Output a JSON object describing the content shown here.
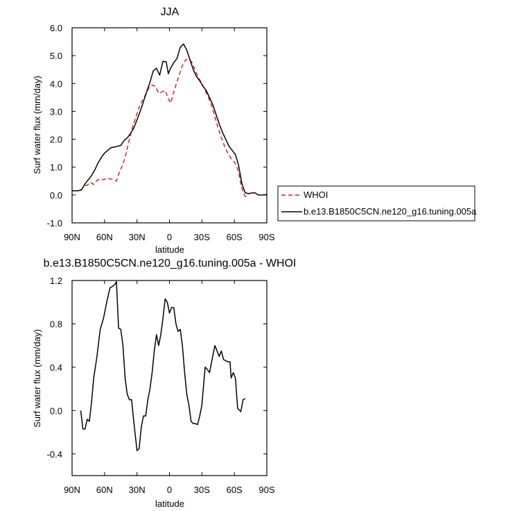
{
  "chart_data": [
    {
      "type": "line",
      "title": "JJA",
      "xlabel": "latitude",
      "ylabel": "Surf water flux (mm/day)",
      "xlim": [
        90,
        -90
      ],
      "ylim": [
        -1.0,
        6.0
      ],
      "x_ticks": [
        90,
        60,
        30,
        0,
        -30,
        -60,
        -90
      ],
      "x_tick_labels": [
        "90N",
        "60N",
        "30N",
        "0",
        "30S",
        "60S",
        "90S"
      ],
      "y_ticks": [
        -1.0,
        0.0,
        1.0,
        2.0,
        3.0,
        4.0,
        5.0,
        6.0
      ],
      "y_tick_labels": [
        "-1.0",
        "0.0",
        "1.0",
        "2.0",
        "3.0",
        "4.0",
        "5.0",
        "6.0"
      ],
      "grid": false,
      "legend_position": "outside-right",
      "series": [
        {
          "name": "WHOI",
          "color": "#e41a1c",
          "dash": "dashed",
          "points": [
            [
              82,
              0.15
            ],
            [
              79,
              0.33
            ],
            [
              76,
              0.35
            ],
            [
              73,
              0.45
            ],
            [
              70,
              0.38
            ],
            [
              67,
              0.52
            ],
            [
              64,
              0.58
            ],
            [
              61,
              0.55
            ],
            [
              58,
              0.6
            ],
            [
              55,
              0.58
            ],
            [
              52,
              0.55
            ],
            [
              49,
              0.5
            ],
            [
              46,
              0.85
            ],
            [
              43,
              1.1
            ],
            [
              40,
              1.5
            ],
            [
              37,
              2.0
            ],
            [
              34,
              2.45
            ],
            [
              31,
              2.8
            ],
            [
              28,
              3.15
            ],
            [
              25,
              3.4
            ],
            [
              22,
              3.6
            ],
            [
              19,
              3.85
            ],
            [
              16,
              3.95
            ],
            [
              13,
              3.9
            ],
            [
              10,
              3.65
            ],
            [
              7,
              3.7
            ],
            [
              4,
              3.75
            ],
            [
              1,
              3.45
            ],
            [
              -1,
              3.3
            ],
            [
              -3,
              3.55
            ],
            [
              -6,
              3.95
            ],
            [
              -9,
              4.3
            ],
            [
              -12,
              4.65
            ],
            [
              -15,
              4.85
            ],
            [
              -18,
              4.88
            ],
            [
              -21,
              4.75
            ],
            [
              -24,
              4.45
            ],
            [
              -27,
              4.2
            ],
            [
              -30,
              4.0
            ],
            [
              -33,
              3.75
            ],
            [
              -36,
              3.5
            ],
            [
              -39,
              3.2
            ],
            [
              -42,
              2.8
            ],
            [
              -45,
              2.4
            ],
            [
              -48,
              2.05
            ],
            [
              -51,
              1.75
            ],
            [
              -54,
              1.5
            ],
            [
              -57,
              1.3
            ],
            [
              -60,
              1.18
            ],
            [
              -62,
              1.05
            ],
            [
              -64,
              0.8
            ],
            [
              -66,
              0.4
            ],
            [
              -68,
              0.1
            ],
            [
              -70,
              -0.05
            ],
            [
              -72,
              -0.08
            ]
          ]
        },
        {
          "name": "b.e13.B1850C5CN.ne120_g16.tuning.005a",
          "color": "#000000",
          "dash": "solid",
          "points": [
            [
              90,
              0.15
            ],
            [
              87,
              0.15
            ],
            [
              84,
              0.15
            ],
            [
              81,
              0.2
            ],
            [
              78,
              0.4
            ],
            [
              75,
              0.55
            ],
            [
              72,
              0.7
            ],
            [
              69,
              0.9
            ],
            [
              66,
              1.15
            ],
            [
              63,
              1.35
            ],
            [
              60,
              1.5
            ],
            [
              57,
              1.6
            ],
            [
              54,
              1.7
            ],
            [
              51,
              1.72
            ],
            [
              48,
              1.75
            ],
            [
              45,
              1.78
            ],
            [
              42,
              1.95
            ],
            [
              39,
              2.05
            ],
            [
              36,
              2.2
            ],
            [
              33,
              2.4
            ],
            [
              30,
              2.7
            ],
            [
              27,
              3.0
            ],
            [
              24,
              3.35
            ],
            [
              21,
              3.7
            ],
            [
              18,
              4.05
            ],
            [
              15,
              4.45
            ],
            [
              12,
              4.55
            ],
            [
              9,
              4.3
            ],
            [
              6,
              4.8
            ],
            [
              3,
              4.78
            ],
            [
              1,
              4.35
            ],
            [
              -1,
              4.55
            ],
            [
              -4,
              4.75
            ],
            [
              -7,
              4.9
            ],
            [
              -10,
              5.3
            ],
            [
              -13,
              5.42
            ],
            [
              -16,
              5.2
            ],
            [
              -19,
              4.85
            ],
            [
              -22,
              4.5
            ],
            [
              -25,
              4.25
            ],
            [
              -28,
              4.1
            ],
            [
              -31,
              3.9
            ],
            [
              -34,
              3.75
            ],
            [
              -37,
              3.5
            ],
            [
              -40,
              3.25
            ],
            [
              -43,
              2.9
            ],
            [
              -46,
              2.55
            ],
            [
              -49,
              2.25
            ],
            [
              -52,
              2.0
            ],
            [
              -55,
              1.75
            ],
            [
              -58,
              1.6
            ],
            [
              -61,
              1.45
            ],
            [
              -64,
              1.05
            ],
            [
              -67,
              0.4
            ],
            [
              -70,
              0.08
            ],
            [
              -73,
              0.05
            ],
            [
              -76,
              0.07
            ],
            [
              -79,
              0.08
            ],
            [
              -82,
              0.0
            ],
            [
              -85,
              0.0
            ],
            [
              -88,
              0.01
            ],
            [
              -90,
              0.02
            ]
          ]
        }
      ]
    },
    {
      "type": "line",
      "title": "b.e13.B1850C5CN.ne120_g16.tuning.005a - WHOI",
      "xlabel": "latitude",
      "ylabel": "Surf water flux (mm/day)",
      "xlim": [
        90,
        -90
      ],
      "ylim": [
        -0.6,
        1.2
      ],
      "x_ticks": [
        90,
        60,
        30,
        0,
        -30,
        -60,
        -90
      ],
      "x_tick_labels": [
        "90N",
        "60N",
        "30N",
        "0",
        "30S",
        "60S",
        "90S"
      ],
      "y_ticks": [
        -0.4,
        0.0,
        0.4,
        0.8,
        1.2
      ],
      "y_tick_labels": [
        "-0.4",
        "0.0",
        "0.4",
        "0.8",
        "1.2"
      ],
      "grid": false,
      "series": [
        {
          "color": "#000000",
          "dash": "solid",
          "points": [
            [
              82,
              0.0
            ],
            [
              80,
              -0.17
            ],
            [
              78,
              -0.17
            ],
            [
              76,
              -0.08
            ],
            [
              74,
              -0.1
            ],
            [
              72,
              0.08
            ],
            [
              70,
              0.3
            ],
            [
              67,
              0.5
            ],
            [
              64,
              0.75
            ],
            [
              61,
              0.85
            ],
            [
              58,
              1.0
            ],
            [
              55,
              1.13
            ],
            [
              52,
              1.15
            ],
            [
              50,
              1.17
            ],
            [
              49,
              1.19
            ],
            [
              47,
              0.76
            ],
            [
              45,
              0.75
            ],
            [
              43,
              0.6
            ],
            [
              41,
              0.3
            ],
            [
              39,
              0.15
            ],
            [
              37,
              0.1
            ],
            [
              35,
              0.1
            ],
            [
              33,
              -0.1
            ],
            [
              30,
              -0.37
            ],
            [
              28,
              -0.35
            ],
            [
              26,
              -0.15
            ],
            [
              24,
              -0.05
            ],
            [
              22,
              -0.05
            ],
            [
              20,
              0.1
            ],
            [
              18,
              0.2
            ],
            [
              16,
              0.35
            ],
            [
              14,
              0.55
            ],
            [
              12,
              0.7
            ],
            [
              10,
              0.6
            ],
            [
              8,
              0.7
            ],
            [
              6,
              0.85
            ],
            [
              4,
              1.03
            ],
            [
              2,
              1.0
            ],
            [
              0,
              0.9
            ],
            [
              -2,
              0.95
            ],
            [
              -4,
              0.95
            ],
            [
              -6,
              0.8
            ],
            [
              -8,
              0.73
            ],
            [
              -10,
              0.75
            ],
            [
              -12,
              0.6
            ],
            [
              -14,
              0.35
            ],
            [
              -16,
              0.15
            ],
            [
              -18,
              0.05
            ],
            [
              -20,
              -0.1
            ],
            [
              -22,
              -0.12
            ],
            [
              -24,
              -0.12
            ],
            [
              -26,
              -0.13
            ],
            [
              -28,
              -0.05
            ],
            [
              -30,
              0.05
            ],
            [
              -33,
              0.4
            ],
            [
              -35,
              0.38
            ],
            [
              -37,
              0.35
            ],
            [
              -40,
              0.5
            ],
            [
              -42,
              0.6
            ],
            [
              -44,
              0.55
            ],
            [
              -46,
              0.5
            ],
            [
              -48,
              0.55
            ],
            [
              -50,
              0.47
            ],
            [
              -54,
              0.45
            ],
            [
              -56,
              0.45
            ],
            [
              -57,
              0.3
            ],
            [
              -59,
              0.35
            ],
            [
              -61,
              0.3
            ],
            [
              -63,
              0.02
            ],
            [
              -66,
              -0.01
            ],
            [
              -68,
              0.1
            ],
            [
              -70,
              0.11
            ]
          ]
        }
      ]
    }
  ]
}
